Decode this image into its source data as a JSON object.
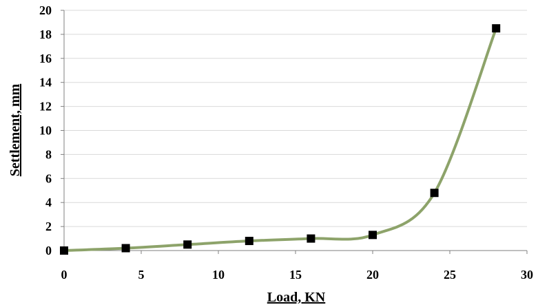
{
  "chart_data": {
    "type": "line",
    "title": "",
    "xlabel": "Load, KN",
    "ylabel": "Settlement, mm",
    "xlim": [
      0,
      30
    ],
    "ylim": [
      0,
      20
    ],
    "xticks": [
      0,
      5,
      10,
      15,
      20,
      25,
      30
    ],
    "yticks": [
      0,
      2,
      4,
      6,
      8,
      10,
      12,
      14,
      16,
      18,
      20
    ],
    "grid": "horizontal",
    "legend": "none",
    "series": [
      {
        "marker": "square",
        "marker_color": "#000000",
        "line_color": "#8da36a",
        "smooth": true,
        "x": [
          0,
          4,
          8,
          12,
          16,
          20,
          24,
          28
        ],
        "y": [
          0,
          0.2,
          0.5,
          0.8,
          1.0,
          1.3,
          4.8,
          18.5
        ]
      }
    ]
  }
}
